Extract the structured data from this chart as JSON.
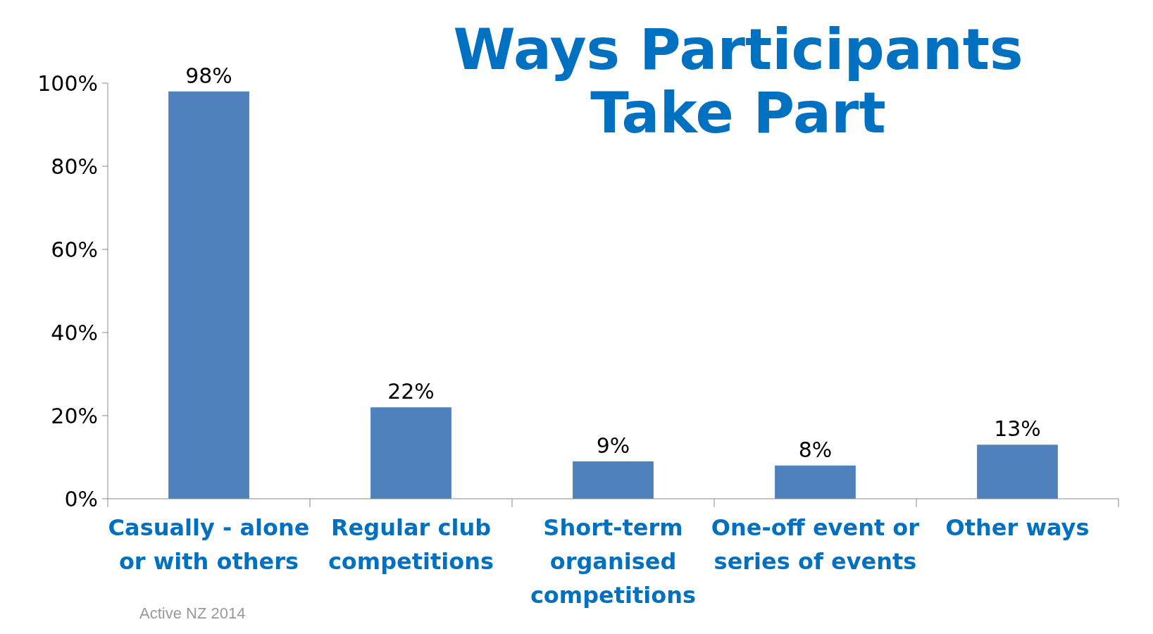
{
  "chart_data": {
    "type": "bar",
    "title": "Ways Participants Take Part",
    "categories": [
      "Casually - alone or with others",
      "Regular club competitions",
      "Short-term organised competitions",
      "One-off event or series of events",
      "Other ways"
    ],
    "values": [
      98,
      22,
      9,
      8,
      13
    ],
    "color": "#4f81bd",
    "ylim": [
      0,
      100
    ],
    "yticks": [
      {
        "value": 0,
        "label": "0%"
      },
      {
        "value": 20,
        "label": "20%"
      },
      {
        "value": 40,
        "label": "40%"
      },
      {
        "value": 60,
        "label": "60%"
      },
      {
        "value": 80,
        "label": "80%"
      },
      {
        "value": 100,
        "label": "100%"
      }
    ],
    "data_labels": true,
    "value_labels": [
      "98%",
      "22%",
      "9%",
      "8%",
      "13%"
    ],
    "annotations": [
      "Active NZ 2014"
    ]
  }
}
